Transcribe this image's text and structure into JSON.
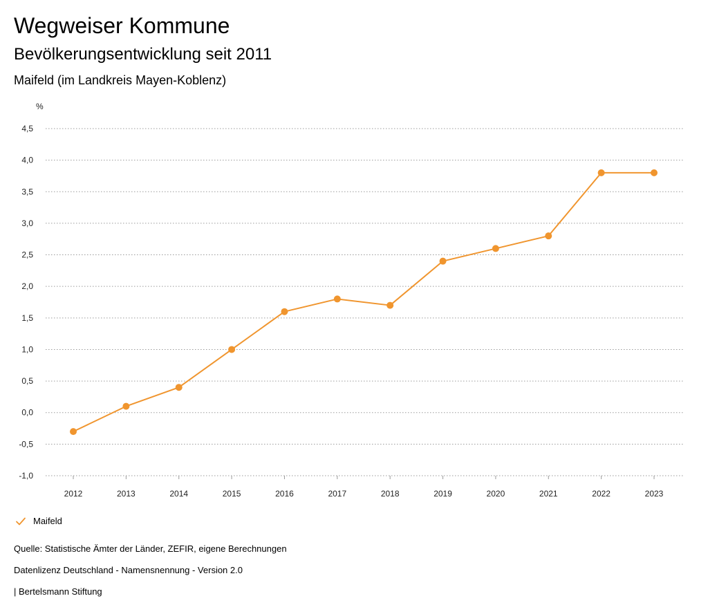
{
  "header": {
    "title": "Wegweiser Kommune",
    "subtitle": "Bevölkerungsentwicklung seit 2011",
    "region": "Maifeld (im Landkreis Mayen-Koblenz)"
  },
  "chart_data": {
    "type": "line",
    "title": "Bevölkerungsentwicklung seit 2011",
    "xlabel": "",
    "ylabel": "%",
    "categories": [
      "2012",
      "2013",
      "2014",
      "2015",
      "2016",
      "2017",
      "2018",
      "2019",
      "2020",
      "2021",
      "2022",
      "2023"
    ],
    "series": [
      {
        "name": "Maifeld",
        "color": "#f0952e",
        "values": [
          -0.3,
          0.1,
          0.4,
          1.0,
          1.6,
          1.8,
          1.7,
          2.4,
          2.6,
          2.8,
          3.8,
          3.8
        ]
      }
    ],
    "ylim": [
      -1.0,
      4.5
    ],
    "yticks": [
      -1.0,
      -0.5,
      0.0,
      0.5,
      1.0,
      1.5,
      2.0,
      2.5,
      3.0,
      3.5,
      4.0,
      4.5
    ],
    "ytick_labels": [
      "-1,0",
      "-0,5",
      "0,0",
      "0,5",
      "1,0",
      "1,5",
      "2,0",
      "2,5",
      "3,0",
      "3,5",
      "4,0",
      "4,5"
    ],
    "grid": true,
    "legend_position": "bottom-left"
  },
  "legend": {
    "label": "Maifeld",
    "icon": "checkmark-icon",
    "color": "#f0952e"
  },
  "footer": {
    "source": "Quelle: Statistische Ämter der Länder, ZEFIR, eigene Berechnungen",
    "license": "Datenlizenz Deutschland - Namensnennung - Version 2.0",
    "publisher": "| Bertelsmann Stiftung"
  }
}
